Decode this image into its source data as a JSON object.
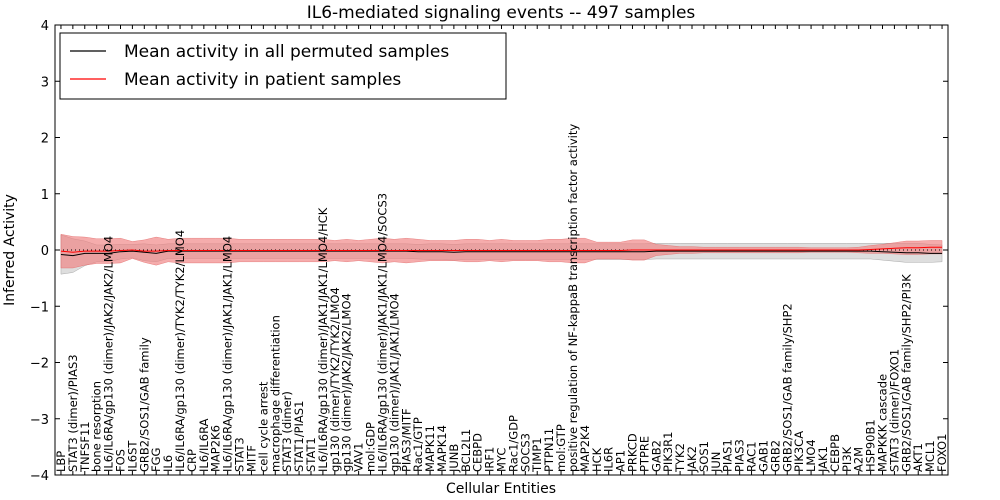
{
  "chart_data": {
    "type": "line",
    "title": "IL6-mediated signaling events -- 497 samples",
    "xlabel": "Cellular Entities",
    "ylabel": "Inferred Activity",
    "ylim": [
      -4,
      4
    ],
    "yticks": [
      "−4",
      "−3",
      "−2",
      "−1",
      "0",
      "1",
      "2",
      "3",
      "4"
    ],
    "grid": false,
    "legend": {
      "placement": "top-left",
      "entries": [
        {
          "name": "Mean activity in all permuted samples",
          "color": "#000000"
        },
        {
          "name": "Mean activity in patient samples",
          "color": "#ff0000"
        }
      ]
    },
    "categories": [
      "LBP",
      "STAT3 (dimer)/PIAS3",
      "TNFSF11",
      "bone resorption",
      "IL6/IL6RA/gp130 (dimer)/JAK2/JAK2/LMO4",
      "FOS",
      "IL6ST",
      "GRB2/SOS1/GAB family",
      "FGG",
      "IL6",
      "IL6/IL6RA/gp130 (dimer)/TYK2/TYK2/LMO4",
      "CRP",
      "IL6/IL6RA",
      "MAP2K6",
      "IL6/IL6RA/gp130 (dimer)/JAK1/JAK1/LMO4",
      "STAT3",
      "MITF",
      "cell cycle arrest",
      "macrophage differentiation",
      "STAT3 (dimer)",
      "STAT1/PIAS1",
      "STAT1",
      "IL6/IL6RA/gp130 (dimer)/JAK1/JAK1/LMO4/HCK",
      "gp130 (dimer)/TYK2/TYK2/LMO4",
      "gp130 (dimer)/JAK2/JAK2/LMO4",
      "VAV1",
      "mol:GDP",
      "IL6/IL6RA/gp130 (dimer)/JAK1/JAK1/LMO4/SOCS3",
      "gp130 (dimer)/JAK1/JAK1/LMO4",
      "PIAS3/MITF",
      "Rac1/GTP",
      "MAPK11",
      "MAPK14",
      "JUNB",
      "BCL2L1",
      "CEBPD",
      "IRF1",
      "MYC",
      "Rac1/GDP",
      "SOCS3",
      "TIMP1",
      "PTPN11",
      "mol:GTP",
      "positive regulation of NF-kappaB transcription factor activity",
      "MAP2K4",
      "HCK",
      "IL6R",
      "AP1",
      "PRKCD",
      "PTPRE",
      "GAB2",
      "PIK3R1",
      "TYK2",
      "JAK2",
      "SOS1",
      "JUN",
      "PIAS1",
      "PIAS3",
      "RAC1",
      "GAB1",
      "GRB2",
      "GRB2/SOS1/GAB family/SHP2",
      "PIK3CA",
      "LMO4",
      "JAK1",
      "CEBPB",
      "PI3K",
      "A2M",
      "HSP90B1",
      "MAPKKK cascade",
      "STAT3 (dimer)/FOXO1",
      "GRB2/SOS1/GAB family/SHP2/PI3K",
      "AKT1",
      "MCL1",
      "FOXO1"
    ],
    "series": [
      {
        "name": "Mean activity in all permuted samples",
        "color": "#000000",
        "values": [
          -0.08,
          -0.1,
          -0.06,
          -0.06,
          -0.06,
          -0.03,
          -0.02,
          -0.04,
          -0.06,
          -0.02,
          -0.02,
          -0.02,
          -0.02,
          -0.02,
          -0.02,
          -0.02,
          -0.02,
          -0.02,
          -0.02,
          -0.02,
          -0.02,
          -0.02,
          -0.02,
          -0.02,
          -0.02,
          -0.02,
          -0.02,
          -0.02,
          -0.02,
          -0.02,
          -0.03,
          -0.03,
          -0.03,
          -0.04,
          -0.03,
          -0.03,
          -0.03,
          -0.03,
          -0.03,
          -0.03,
          -0.03,
          -0.03,
          -0.03,
          -0.03,
          -0.03,
          -0.03,
          -0.03,
          -0.03,
          -0.03,
          -0.03,
          -0.02,
          -0.02,
          -0.02,
          -0.02,
          -0.02,
          -0.02,
          -0.02,
          -0.02,
          -0.02,
          -0.02,
          -0.02,
          -0.02,
          -0.02,
          -0.02,
          -0.02,
          -0.02,
          -0.02,
          -0.02,
          -0.02,
          -0.03,
          -0.04,
          -0.05,
          -0.05,
          -0.06,
          -0.06
        ],
        "band": [
          0.35,
          0.3,
          0.22,
          0.15,
          0.15,
          0.13,
          0.12,
          0.15,
          0.15,
          0.13,
          0.13,
          0.13,
          0.13,
          0.13,
          0.13,
          0.13,
          0.13,
          0.13,
          0.13,
          0.13,
          0.13,
          0.13,
          0.13,
          0.13,
          0.13,
          0.13,
          0.13,
          0.13,
          0.13,
          0.13,
          0.13,
          0.14,
          0.14,
          0.14,
          0.14,
          0.14,
          0.14,
          0.14,
          0.14,
          0.14,
          0.14,
          0.14,
          0.14,
          0.14,
          0.14,
          0.14,
          0.14,
          0.14,
          0.14,
          0.14,
          0.14,
          0.14,
          0.14,
          0.14,
          0.14,
          0.14,
          0.14,
          0.14,
          0.14,
          0.14,
          0.14,
          0.14,
          0.14,
          0.14,
          0.14,
          0.14,
          0.14,
          0.14,
          0.14,
          0.15,
          0.16,
          0.17,
          0.17,
          0.16,
          0.15
        ]
      },
      {
        "name": "Mean activity in patient samples",
        "color": "#ff0000",
        "values": [
          -0.02,
          -0.04,
          -0.02,
          -0.02,
          -0.02,
          -0.01,
          0.0,
          -0.02,
          -0.02,
          -0.01,
          -0.01,
          -0.01,
          -0.01,
          -0.01,
          -0.01,
          -0.01,
          -0.01,
          -0.01,
          -0.01,
          -0.01,
          -0.01,
          -0.01,
          -0.01,
          -0.01,
          -0.01,
          -0.01,
          -0.01,
          -0.01,
          -0.01,
          -0.01,
          -0.01,
          -0.01,
          -0.01,
          -0.01,
          -0.01,
          -0.01,
          -0.01,
          -0.01,
          -0.01,
          -0.01,
          -0.01,
          -0.01,
          -0.01,
          -0.01,
          -0.01,
          -0.01,
          -0.01,
          -0.01,
          0.0,
          0.0,
          0.0,
          0.0,
          0.0,
          0.0,
          0.0,
          0.0,
          0.0,
          0.0,
          0.0,
          0.0,
          0.0,
          0.0,
          0.0,
          0.0,
          0.0,
          0.0,
          0.0,
          0.0,
          0.01,
          0.02,
          0.03,
          0.04,
          0.04,
          0.05,
          0.05
        ],
        "band": [
          0.3,
          0.28,
          0.25,
          0.22,
          0.22,
          0.22,
          0.15,
          0.2,
          0.25,
          0.2,
          0.22,
          0.22,
          0.22,
          0.22,
          0.22,
          0.2,
          0.2,
          0.2,
          0.2,
          0.2,
          0.2,
          0.2,
          0.2,
          0.18,
          0.2,
          0.18,
          0.2,
          0.22,
          0.2,
          0.22,
          0.2,
          0.18,
          0.18,
          0.18,
          0.2,
          0.2,
          0.18,
          0.2,
          0.18,
          0.18,
          0.18,
          0.2,
          0.2,
          0.22,
          0.22,
          0.15,
          0.15,
          0.15,
          0.18,
          0.18,
          0.1,
          0.08,
          0.06,
          0.06,
          0.05,
          0.05,
          0.05,
          0.05,
          0.05,
          0.05,
          0.05,
          0.05,
          0.05,
          0.04,
          0.04,
          0.04,
          0.04,
          0.05,
          0.07,
          0.08,
          0.1,
          0.12,
          0.12,
          0.12,
          0.12
        ]
      }
    ]
  }
}
